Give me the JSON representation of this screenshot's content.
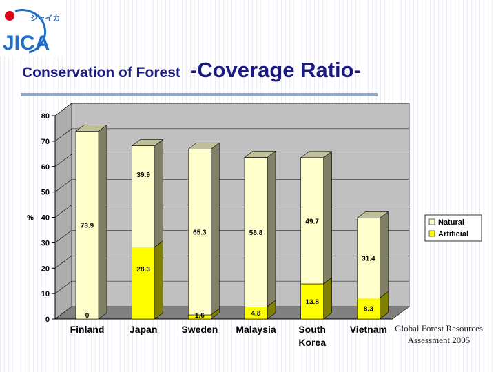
{
  "logo": {
    "text": "JICA",
    "kana": "ジャイカ"
  },
  "header": {
    "title": "Conservation of Forest",
    "subtitle": "-Coverage Ratio-"
  },
  "source": {
    "line1": "Global Forest Resources",
    "line2": "Assessment 2005"
  },
  "colors": {
    "natural": "#ffffcc",
    "artificial": "#ffff00",
    "title": "#1a1a80",
    "floor": "#808080",
    "plot": "#c0c0c0"
  },
  "chart_data": {
    "type": "bar",
    "stacked": true,
    "categories": [
      [
        "Finland"
      ],
      [
        "Japan"
      ],
      [
        "Sweden"
      ],
      [
        "Malaysia"
      ],
      [
        "South",
        "Korea"
      ],
      [
        "Vietnam"
      ]
    ],
    "series": [
      {
        "name": "Artificial",
        "values": [
          0,
          28.3,
          1.6,
          4.8,
          13.8,
          8.3
        ],
        "labels": [
          "0",
          "28.3",
          "1.6",
          "4.8",
          "13.8",
          "8.3"
        ]
      },
      {
        "name": "Natural",
        "values": [
          73.9,
          39.9,
          65.3,
          58.8,
          49.7,
          31.4
        ],
        "labels": [
          "73.9",
          "39.9",
          "65.3",
          "58.8",
          "49.7",
          "31.4"
        ]
      }
    ],
    "ylabel": "%",
    "ylim": [
      0,
      80
    ],
    "yticks": [
      "0",
      "10",
      "20",
      "30",
      "40",
      "50",
      "60",
      "70",
      "80"
    ],
    "grid": true,
    "legend_position": "right",
    "legend": [
      "Natural",
      "Artificial"
    ]
  }
}
